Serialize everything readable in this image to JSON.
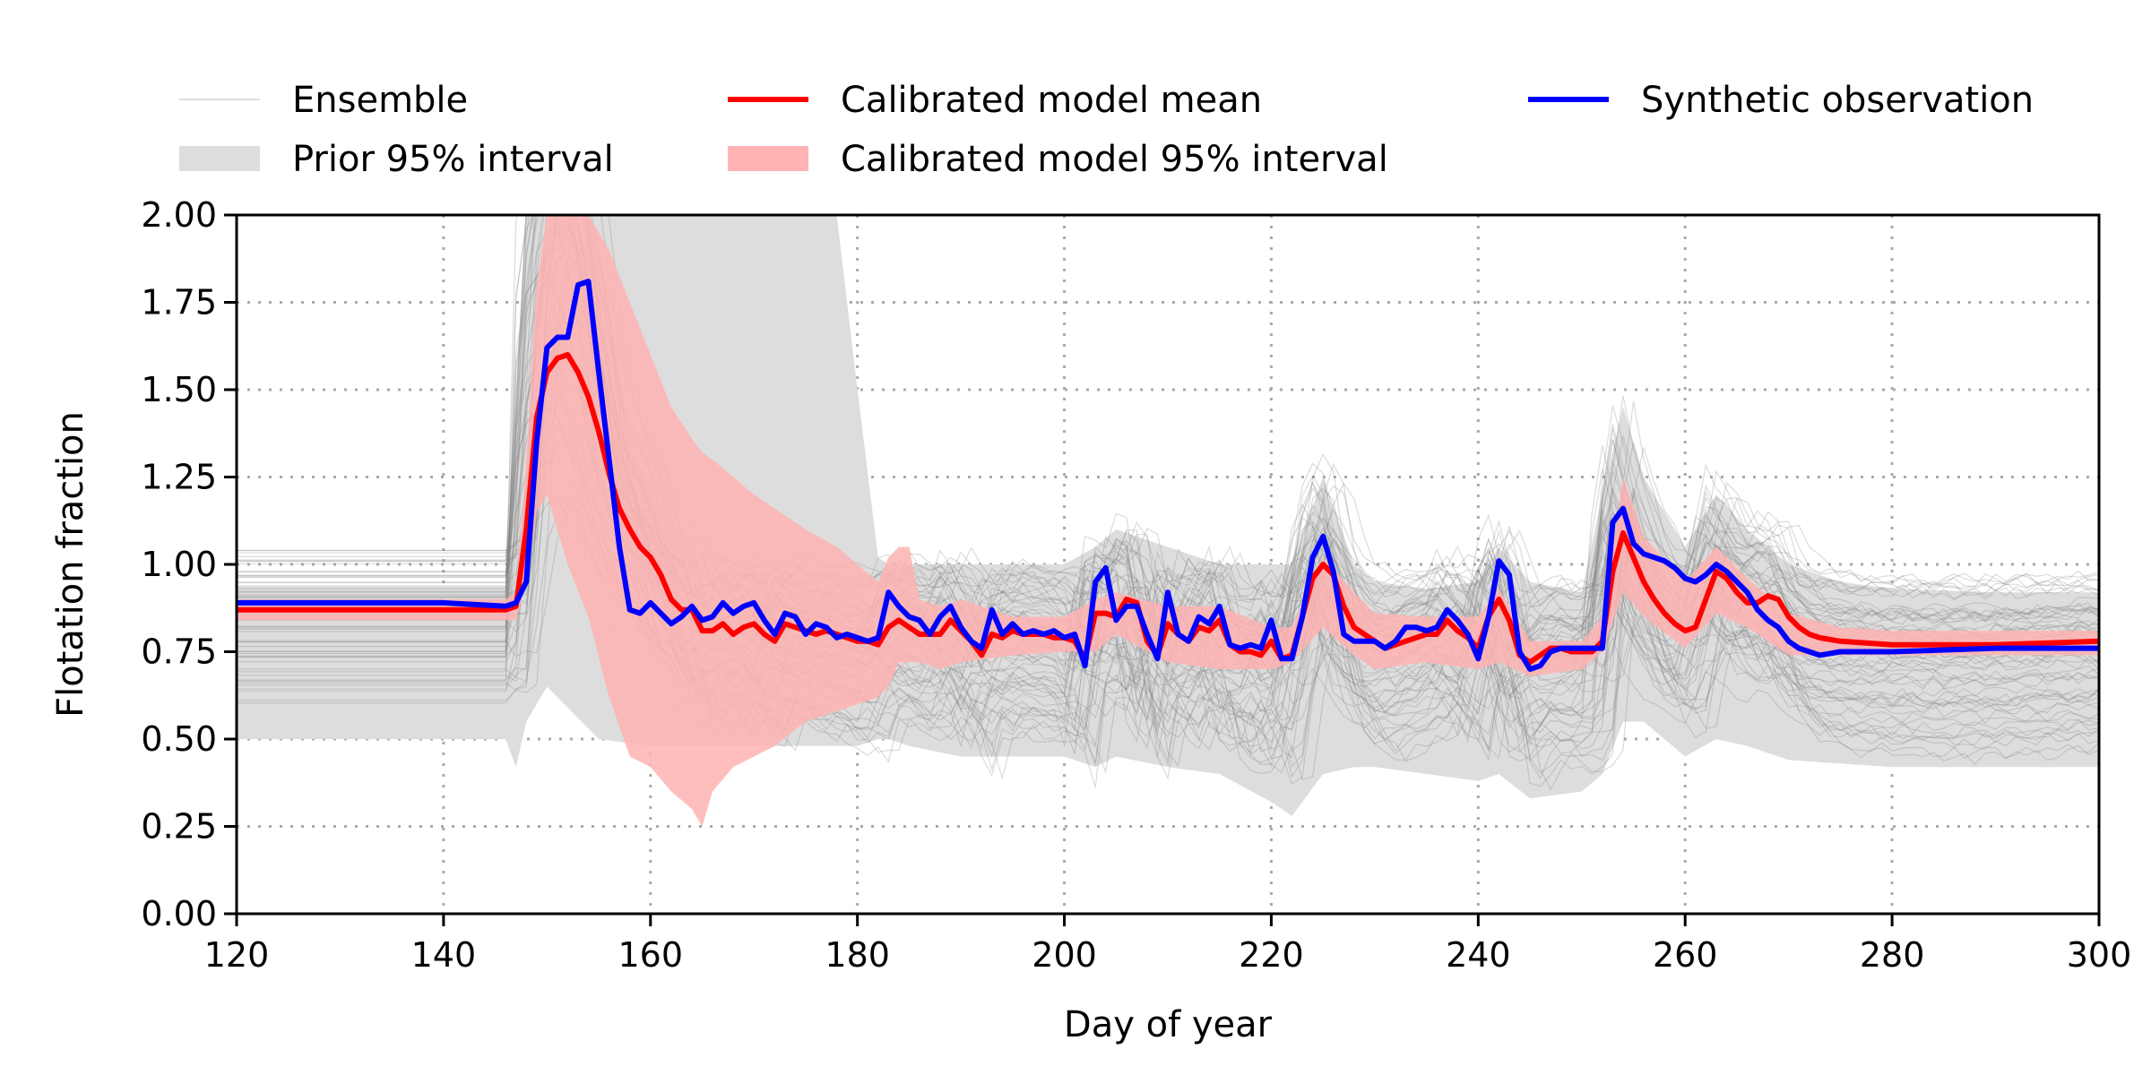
{
  "chart_data": {
    "type": "line",
    "xlabel": "Day of year",
    "ylabel": "Flotation fraction",
    "xlim": [
      120,
      300
    ],
    "ylim": [
      0,
      2
    ],
    "x_ticks": [
      "120",
      "140",
      "160",
      "180",
      "200",
      "220",
      "240",
      "260",
      "280",
      "300"
    ],
    "y_ticks": [
      "0.00",
      "0.25",
      "0.50",
      "0.75",
      "1.00",
      "1.25",
      "1.50",
      "1.75",
      "2.00"
    ],
    "grid": true,
    "legend_position": "top",
    "legend": [
      {
        "label": "Ensemble",
        "kind": "line",
        "color": "#cccccc"
      },
      {
        "label": "Prior 95% interval",
        "kind": "patch",
        "color": "#dddddd"
      },
      {
        "label": "Calibrated model mean",
        "kind": "line",
        "color": "#ff0000"
      },
      {
        "label": "Calibrated model 95% interval",
        "kind": "patch",
        "color": "#ffb3b3"
      },
      {
        "label": "Synthetic observation",
        "kind": "line",
        "color": "#0000ff"
      }
    ],
    "series": [
      {
        "name": "Synthetic observation",
        "color": "#0000ff",
        "x": [
          120,
          130,
          140,
          146,
          147,
          148,
          149,
          150,
          151,
          152,
          153,
          154,
          155,
          156,
          157,
          158,
          159,
          160,
          161,
          162,
          163,
          164,
          165,
          166,
          167,
          168,
          169,
          170,
          171,
          172,
          173,
          174,
          175,
          176,
          177,
          178,
          179,
          180,
          181,
          182,
          183,
          184,
          185,
          186,
          187,
          188,
          189,
          190,
          191,
          192,
          193,
          194,
          195,
          196,
          197,
          198,
          199,
          200,
          201,
          202,
          203,
          204,
          205,
          206,
          207,
          208,
          209,
          210,
          211,
          212,
          213,
          214,
          215,
          216,
          217,
          218,
          219,
          220,
          221,
          222,
          223,
          224,
          225,
          226,
          227,
          228,
          229,
          230,
          231,
          232,
          233,
          234,
          235,
          236,
          237,
          238,
          239,
          240,
          241,
          242,
          243,
          244,
          245,
          246,
          247,
          248,
          249,
          250,
          251,
          252,
          253,
          254,
          255,
          256,
          257,
          258,
          259,
          260,
          261,
          262,
          263,
          264,
          265,
          266,
          267,
          268,
          269,
          270,
          271,
          272,
          273,
          275,
          280,
          290,
          300
        ],
        "y": [
          0.89,
          0.89,
          0.89,
          0.88,
          0.89,
          0.95,
          1.35,
          1.62,
          1.65,
          1.65,
          1.8,
          1.81,
          1.55,
          1.3,
          1.05,
          0.87,
          0.86,
          0.89,
          0.86,
          0.83,
          0.85,
          0.88,
          0.84,
          0.85,
          0.89,
          0.86,
          0.88,
          0.89,
          0.84,
          0.8,
          0.86,
          0.85,
          0.8,
          0.83,
          0.82,
          0.79,
          0.8,
          0.79,
          0.78,
          0.79,
          0.92,
          0.88,
          0.85,
          0.84,
          0.8,
          0.85,
          0.88,
          0.82,
          0.78,
          0.76,
          0.87,
          0.8,
          0.83,
          0.8,
          0.81,
          0.8,
          0.81,
          0.79,
          0.8,
          0.71,
          0.95,
          0.99,
          0.84,
          0.88,
          0.88,
          0.8,
          0.73,
          0.92,
          0.8,
          0.78,
          0.85,
          0.83,
          0.88,
          0.77,
          0.76,
          0.77,
          0.76,
          0.84,
          0.73,
          0.73,
          0.85,
          1.02,
          1.08,
          0.98,
          0.8,
          0.78,
          0.78,
          0.78,
          0.76,
          0.78,
          0.82,
          0.82,
          0.81,
          0.82,
          0.87,
          0.84,
          0.8,
          0.73,
          0.85,
          1.01,
          0.97,
          0.75,
          0.7,
          0.71,
          0.75,
          0.76,
          0.76,
          0.76,
          0.76,
          0.76,
          1.12,
          1.16,
          1.06,
          1.03,
          1.02,
          1.01,
          0.99,
          0.96,
          0.95,
          0.97,
          1.0,
          0.98,
          0.95,
          0.92,
          0.87,
          0.84,
          0.82,
          0.78,
          0.76,
          0.75,
          0.74,
          0.75,
          0.75,
          0.76,
          0.76
        ]
      },
      {
        "name": "Calibrated model mean",
        "color": "#ff0000",
        "x": [
          120,
          130,
          140,
          146,
          147,
          148,
          149,
          150,
          151,
          152,
          153,
          154,
          155,
          156,
          157,
          158,
          159,
          160,
          161,
          162,
          163,
          164,
          165,
          166,
          167,
          168,
          169,
          170,
          171,
          172,
          173,
          174,
          175,
          176,
          177,
          178,
          179,
          180,
          181,
          182,
          183,
          184,
          185,
          186,
          187,
          188,
          189,
          190,
          191,
          192,
          193,
          194,
          195,
          196,
          197,
          198,
          199,
          200,
          201,
          202,
          203,
          204,
          205,
          206,
          207,
          208,
          209,
          210,
          211,
          212,
          213,
          214,
          215,
          216,
          217,
          218,
          219,
          220,
          221,
          222,
          223,
          224,
          225,
          226,
          227,
          228,
          229,
          230,
          231,
          232,
          233,
          234,
          235,
          236,
          237,
          238,
          239,
          240,
          241,
          242,
          243,
          244,
          245,
          246,
          247,
          248,
          249,
          250,
          251,
          252,
          253,
          254,
          255,
          256,
          257,
          258,
          259,
          260,
          261,
          262,
          263,
          264,
          265,
          266,
          267,
          268,
          269,
          270,
          271,
          272,
          273,
          275,
          280,
          290,
          300
        ],
        "y": [
          0.87,
          0.87,
          0.87,
          0.87,
          0.88,
          1.1,
          1.42,
          1.55,
          1.59,
          1.6,
          1.55,
          1.48,
          1.38,
          1.26,
          1.16,
          1.1,
          1.05,
          1.02,
          0.97,
          0.9,
          0.87,
          0.87,
          0.81,
          0.81,
          0.83,
          0.8,
          0.82,
          0.83,
          0.8,
          0.78,
          0.83,
          0.82,
          0.81,
          0.8,
          0.81,
          0.8,
          0.79,
          0.78,
          0.78,
          0.77,
          0.82,
          0.84,
          0.82,
          0.8,
          0.8,
          0.8,
          0.84,
          0.81,
          0.78,
          0.74,
          0.8,
          0.79,
          0.81,
          0.8,
          0.8,
          0.8,
          0.79,
          0.79,
          0.78,
          0.73,
          0.86,
          0.86,
          0.85,
          0.9,
          0.89,
          0.78,
          0.74,
          0.83,
          0.8,
          0.78,
          0.82,
          0.81,
          0.84,
          0.77,
          0.75,
          0.75,
          0.74,
          0.78,
          0.73,
          0.74,
          0.85,
          0.96,
          1.0,
          0.97,
          0.88,
          0.82,
          0.8,
          0.78,
          0.76,
          0.77,
          0.78,
          0.79,
          0.8,
          0.8,
          0.84,
          0.81,
          0.79,
          0.76,
          0.85,
          0.9,
          0.84,
          0.74,
          0.72,
          0.74,
          0.76,
          0.76,
          0.75,
          0.75,
          0.75,
          0.78,
          0.98,
          1.09,
          1.02,
          0.95,
          0.9,
          0.86,
          0.83,
          0.81,
          0.82,
          0.9,
          0.98,
          0.96,
          0.92,
          0.89,
          0.89,
          0.91,
          0.9,
          0.85,
          0.82,
          0.8,
          0.79,
          0.78,
          0.77,
          0.77,
          0.78
        ]
      }
    ],
    "intervals": [
      {
        "name": "Prior 95% interval",
        "color": "#dddddd",
        "x": [
          120,
          146,
          147,
          148,
          150,
          155,
          160,
          165,
          170,
          175,
          178,
          180,
          182,
          183,
          185,
          190,
          195,
          200,
          203,
          205,
          210,
          215,
          220,
          222,
          225,
          228,
          230,
          235,
          240,
          242,
          245,
          250,
          252,
          254,
          256,
          260,
          263,
          266,
          270,
          275,
          280,
          290,
          300
        ],
        "upper": [
          0.94,
          0.94,
          1.5,
          2.0,
          2.0,
          2.0,
          2.0,
          2.0,
          2.0,
          2.0,
          2.0,
          1.5,
          1.02,
          1.0,
          1.0,
          1.0,
          1.0,
          1.0,
          1.05,
          1.1,
          1.05,
          1.0,
          1.0,
          1.0,
          1.25,
          1.0,
          0.95,
          0.93,
          0.95,
          1.05,
          0.95,
          0.92,
          1.2,
          1.45,
          1.25,
          1.05,
          1.2,
          1.1,
          1.0,
          0.95,
          0.93,
          0.92,
          0.92
        ],
        "lower": [
          0.5,
          0.5,
          0.42,
          0.55,
          0.65,
          0.5,
          0.48,
          0.48,
          0.48,
          0.48,
          0.48,
          0.48,
          0.5,
          0.5,
          0.48,
          0.45,
          0.45,
          0.45,
          0.42,
          0.45,
          0.42,
          0.4,
          0.32,
          0.28,
          0.4,
          0.42,
          0.42,
          0.4,
          0.38,
          0.4,
          0.33,
          0.35,
          0.4,
          0.55,
          0.55,
          0.45,
          0.5,
          0.48,
          0.44,
          0.43,
          0.42,
          0.42,
          0.42
        ]
      },
      {
        "name": "Calibrated model 95% interval",
        "color": "#ffb3b3",
        "x": [
          120,
          146,
          147,
          148,
          149,
          150,
          152,
          154,
          156,
          158,
          160,
          162,
          164,
          165,
          166,
          168,
          170,
          172,
          175,
          178,
          180,
          182,
          183,
          184,
          185,
          186,
          188,
          190,
          195,
          200,
          203,
          205,
          210,
          215,
          220,
          222,
          225,
          228,
          230,
          235,
          240,
          242,
          245,
          250,
          252,
          254,
          256,
          260,
          263,
          266,
          270,
          275,
          280,
          290,
          300
        ],
        "upper": [
          0.9,
          0.9,
          0.92,
          1.3,
          1.8,
          2.0,
          2.0,
          2.0,
          1.9,
          1.75,
          1.6,
          1.45,
          1.36,
          1.32,
          1.3,
          1.25,
          1.2,
          1.16,
          1.1,
          1.05,
          1.0,
          0.95,
          1.02,
          1.05,
          1.05,
          0.9,
          0.88,
          0.9,
          0.85,
          0.85,
          0.9,
          0.92,
          0.88,
          0.88,
          0.82,
          0.82,
          1.02,
          0.92,
          0.86,
          0.85,
          0.85,
          0.93,
          0.78,
          0.78,
          0.85,
          1.25,
          1.08,
          0.95,
          1.05,
          0.96,
          0.86,
          0.82,
          0.81,
          0.81,
          0.81
        ],
        "lower": [
          0.84,
          0.84,
          0.84,
          0.95,
          1.15,
          1.2,
          1.0,
          0.85,
          0.62,
          0.45,
          0.42,
          0.35,
          0.3,
          0.25,
          0.35,
          0.42,
          0.45,
          0.48,
          0.55,
          0.58,
          0.6,
          0.62,
          0.65,
          0.72,
          0.72,
          0.72,
          0.7,
          0.72,
          0.74,
          0.75,
          0.75,
          0.8,
          0.72,
          0.7,
          0.7,
          0.72,
          0.82,
          0.74,
          0.7,
          0.72,
          0.7,
          0.72,
          0.68,
          0.7,
          0.75,
          0.92,
          0.85,
          0.76,
          0.86,
          0.82,
          0.74,
          0.74,
          0.74,
          0.74,
          0.74
        ]
      }
    ]
  }
}
